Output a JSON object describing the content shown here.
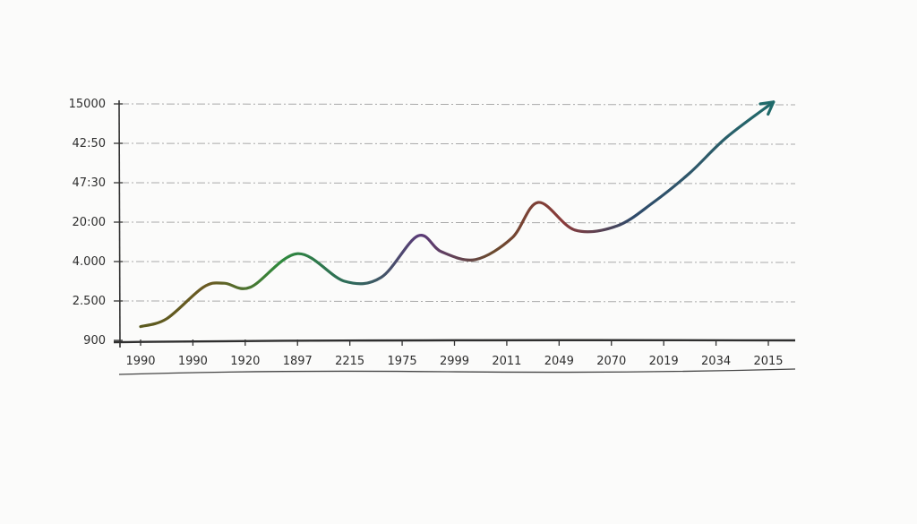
{
  "chart_data": {
    "type": "line",
    "title": "",
    "xlabel": "",
    "ylabel": "",
    "y_tick_labels": [
      "900",
      "2.500",
      "4.000",
      "20:00",
      "47:30",
      "42:50",
      "15000"
    ],
    "x_tick_labels": [
      "1990",
      "1990",
      "1920",
      "1897",
      "2215",
      "1975",
      "2999",
      "2011",
      "2049",
      "2070",
      "2019",
      "2034",
      "2015"
    ],
    "ylim": [
      0,
      6
    ],
    "grid": true,
    "legend": "none",
    "end_arrow": true,
    "line_colors": [
      "#5a5a1e",
      "#6b5a22",
      "#2f8a3c",
      "#2e6a5a",
      "#5b3a78",
      "#6a4a2e",
      "#8a3a3a",
      "#2e4a6a",
      "#2e5a6a",
      "#1f6a6a"
    ],
    "series": [
      {
        "x_positions": [
          0,
          0.5,
          1.2,
          1.6,
          2.1,
          3.0,
          3.9,
          4.6,
          5.3,
          5.75,
          6.4,
          7.1,
          7.6,
          8.3,
          9.1,
          9.8,
          10.5,
          11.2,
          12.1
        ],
        "values": [
          0.35,
          0.55,
          1.35,
          1.45,
          1.35,
          2.2,
          1.5,
          1.6,
          2.65,
          2.25,
          2.05,
          2.6,
          3.5,
          2.8,
          2.9,
          3.5,
          4.25,
          5.15,
          6.05
        ]
      }
    ]
  }
}
